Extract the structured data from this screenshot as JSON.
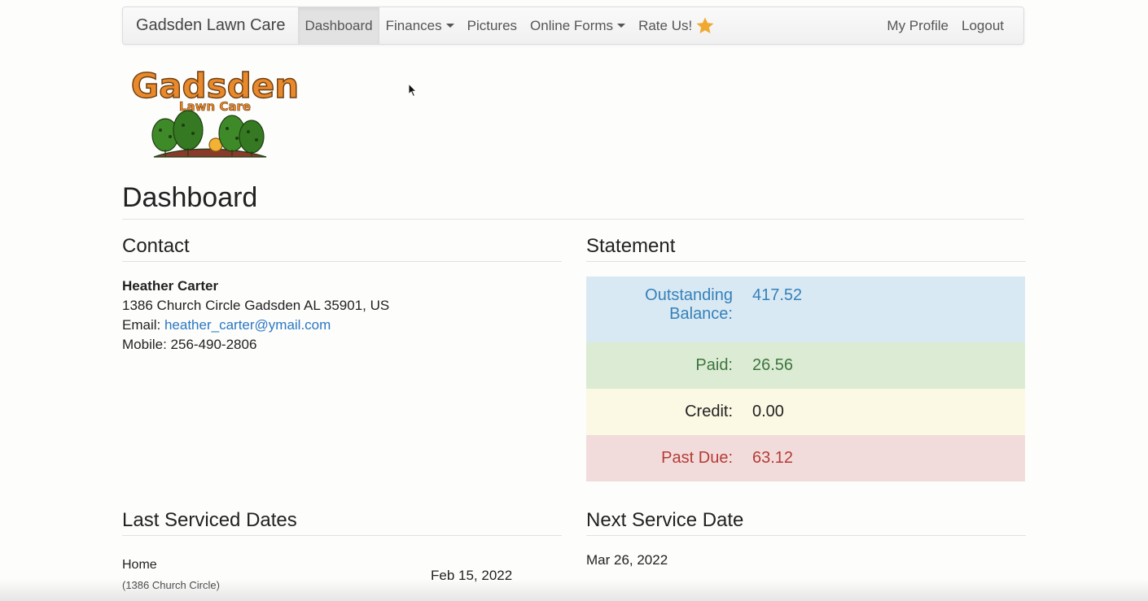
{
  "navbar": {
    "brand": "Gadsden Lawn Care",
    "items": [
      {
        "label": "Dashboard",
        "active": true,
        "dropdown": false
      },
      {
        "label": "Finances",
        "dropdown": true
      },
      {
        "label": "Pictures",
        "dropdown": false
      },
      {
        "label": "Online Forms",
        "dropdown": true
      },
      {
        "label": "Rate Us!",
        "icon": "star-icon"
      }
    ],
    "right": [
      {
        "label": "My Profile"
      },
      {
        "label": "Logout"
      }
    ]
  },
  "logo": {
    "title": "Gadsden",
    "subtitle": "Lawn Care",
    "icon": "trees-logo"
  },
  "page_title": "Dashboard",
  "contact": {
    "heading": "Contact",
    "name": "Heather Carter",
    "address": "1386 Church Circle Gadsden AL 35901, US",
    "email_label": "Email:",
    "email": "heather_carter@ymail.com",
    "mobile_label": "Mobile:",
    "mobile": "256-490-2806"
  },
  "statement": {
    "heading": "Statement",
    "outstanding_label_1": "Outstanding",
    "outstanding_label_2": "Balance:",
    "outstanding_value": "417.52",
    "paid_label": "Paid:",
    "paid_value": "26.56",
    "credit_label": "Credit:",
    "credit_value": "0.00",
    "past_due_label": "Past Due:",
    "past_due_value": "63.12"
  },
  "last_serviced": {
    "heading": "Last Serviced Dates",
    "location": "Home",
    "location_detail": "(1386 Church Circle)",
    "date": "Feb 15, 2022"
  },
  "next_service": {
    "heading": "Next Service Date",
    "date": "Mar 26, 2022"
  },
  "colors": {
    "info_bg": "#d9e9f4",
    "info_text": "#3581b8",
    "success_bg": "#dcebd4",
    "success_text": "#3c763d",
    "warning_bg": "#fbf8e3",
    "danger_bg": "#f1dcdb",
    "danger_text": "#b63b36",
    "link": "#2a78c2",
    "star": "#f0a830",
    "logo_orange": "#e8892b"
  }
}
